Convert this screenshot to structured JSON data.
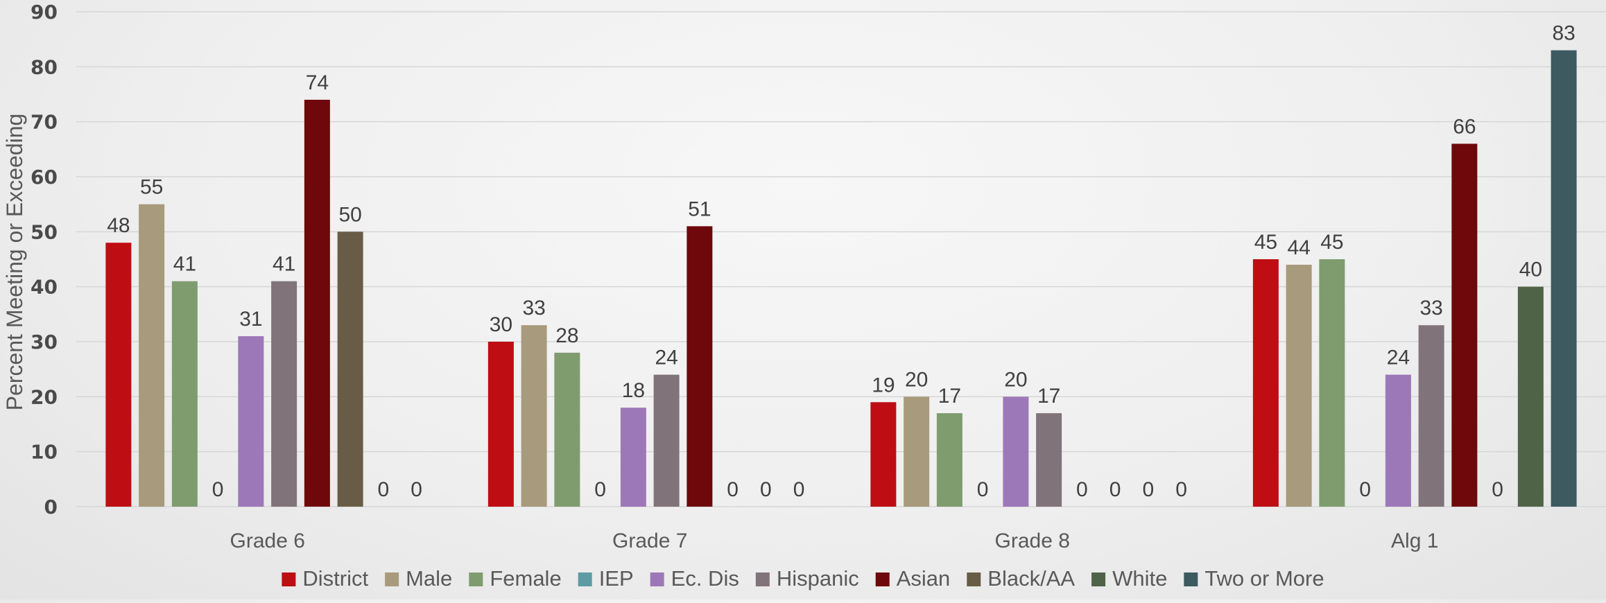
{
  "chart_data": {
    "type": "bar",
    "ylabel": "Percent Meeting or Exceeding",
    "xlabel": "",
    "ylim": [
      0,
      90
    ],
    "yticks": [
      "0",
      "10",
      "20",
      "30",
      "40",
      "50",
      "60",
      "70",
      "80",
      "90"
    ],
    "grid": true,
    "legend_position": "bottom",
    "categories": [
      "Grade 6",
      "Grade 7",
      "Grade 8",
      "Alg 1"
    ],
    "series": [
      {
        "name": "District",
        "color": "#BE0E14",
        "values": [
          48,
          30,
          19,
          45
        ]
      },
      {
        "name": "Male",
        "color": "#A89A7C",
        "values": [
          55,
          33,
          20,
          44
        ]
      },
      {
        "name": "Female",
        "color": "#7F9C6F",
        "values": [
          41,
          28,
          17,
          45
        ]
      },
      {
        "name": "IEP",
        "color": "#5E9BA2",
        "values": [
          0,
          0,
          0,
          0
        ]
      },
      {
        "name": "Ec. Dis",
        "color": "#9D78B8",
        "values": [
          31,
          18,
          20,
          24
        ]
      },
      {
        "name": "Hispanic",
        "color": "#807379",
        "values": [
          41,
          24,
          17,
          33
        ]
      },
      {
        "name": "Asian",
        "color": "#6E080B",
        "values": [
          74,
          51,
          0,
          66
        ]
      },
      {
        "name": "Black/AA",
        "color": "#695C46",
        "values": [
          50,
          0,
          0,
          0
        ]
      },
      {
        "name": "White",
        "color": "#4F6347",
        "values": [
          0,
          0,
          0,
          40
        ]
      },
      {
        "name": "Two or More",
        "color": "#3D5A61",
        "values": [
          0,
          0,
          0,
          83
        ]
      }
    ],
    "data_labels": [
      [
        "48",
        "55",
        "41",
        "0",
        "31",
        "41",
        "74",
        "50",
        "0",
        "0"
      ],
      [
        "30",
        "33",
        "28",
        "0",
        "18",
        "24",
        "51",
        "0",
        "0",
        "0"
      ],
      [
        "19",
        "20",
        "17",
        "0",
        "20",
        "17",
        "0",
        "0",
        "0",
        "0"
      ],
      [
        "45",
        "44",
        "45",
        "0",
        "24",
        "33",
        "66",
        "0",
        "40",
        "83"
      ]
    ]
  }
}
